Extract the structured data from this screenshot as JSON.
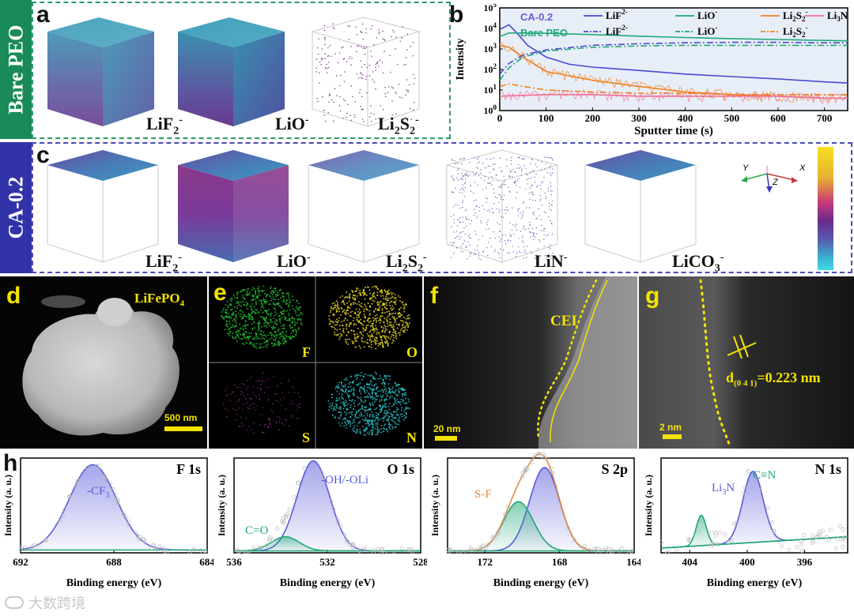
{
  "side_labels": {
    "bare": "Bare PEO",
    "ca": "CA-0.2"
  },
  "colors": {
    "bare_bar": "#1a8a5a",
    "ca_bar": "#3232a8",
    "bare_dash": "#2a9a6a",
    "ca_dash": "#4a4ab8",
    "yellow": "#f3e400"
  },
  "panel_a": {
    "letter": "a",
    "labels": [
      "LiF",
      "LiO",
      "Li",
      "S"
    ],
    "label_texts": [
      {
        "base": "LiF",
        "sub": "2",
        "sup": "-"
      },
      {
        "base": "LiO",
        "sub": "",
        "sup": "-"
      },
      {
        "base": "Li",
        "sub": "2",
        "mid": "S",
        "sub2": "2",
        "sup": "-"
      }
    ]
  },
  "panel_c": {
    "letter": "c",
    "label_texts": [
      {
        "base": "LiF",
        "sub": "2",
        "sup": "-"
      },
      {
        "base": "LiO",
        "sub": "",
        "sup": "-"
      },
      {
        "base": "Li",
        "sub": "2",
        "mid": "S",
        "sub2": "2",
        "sup": "-"
      },
      {
        "base": "LiN",
        "sub": "",
        "sup": "-"
      },
      {
        "base": "LiCO",
        "sub": "3",
        "sup": "-"
      }
    ],
    "axes": {
      "y": "Y",
      "z": "Z",
      "x": "X"
    }
  },
  "panel_b": {
    "letter": "b",
    "legend_groups": {
      "ca": "CA-0.2",
      "bare": "Bare PEO"
    },
    "legend_items": [
      {
        "label": "LiF",
        "sup": "2-",
        "color": "#4a4ad0",
        "style": "solid"
      },
      {
        "label": "LiO",
        "sup": "-",
        "color": "#20a878",
        "style": "solid"
      },
      {
        "label": "Li",
        "sub": "2",
        "mid": "S",
        "sub2": "2",
        "sup": "-",
        "color": "#f08020",
        "style": "solid"
      },
      {
        "label": "Li",
        "sub": "3",
        "mid": "N",
        "color": "#f07090",
        "style": "solid"
      },
      {
        "label": "LiF",
        "sup": "2-",
        "color": "#4a4ad0",
        "style": "dashdot"
      },
      {
        "label": "LiO",
        "sup": "-",
        "color": "#20a878",
        "style": "dashdot"
      },
      {
        "label": "Li",
        "sub": "2",
        "mid": "S",
        "sub2": "2",
        "sup": "-",
        "color": "#f08020",
        "style": "dashdot"
      }
    ]
  },
  "chart_data": [
    {
      "type": "line",
      "title": "",
      "xlabel": "Sputter time (s)",
      "ylabel": "Intensity",
      "xlim": [
        0,
        750
      ],
      "ylim": [
        1,
        100000
      ],
      "yscale": "log",
      "xticks": [
        0,
        100,
        200,
        300,
        400,
        500,
        600,
        700
      ],
      "yticks": [
        "10^0",
        "10^1",
        "10^2",
        "10^3",
        "10^4",
        "10^5"
      ],
      "series": [
        {
          "name": "CA-0.2 LiF2-",
          "color": "#4a4ad0",
          "dash": "",
          "x": [
            0,
            20,
            40,
            60,
            100,
            150,
            200,
            300,
            400,
            500,
            600,
            700,
            750
          ],
          "y": [
            9000,
            15000,
            5000,
            1500,
            400,
            180,
            130,
            90,
            60,
            45,
            35,
            25,
            22
          ]
        },
        {
          "name": "CA-0.2 LiO-",
          "color": "#20a878",
          "dash": "",
          "x": [
            0,
            20,
            50,
            100,
            200,
            300,
            400,
            500,
            600,
            700,
            750
          ],
          "y": [
            4000,
            6000,
            6000,
            5800,
            5000,
            4200,
            3600,
            3200,
            2900,
            2600,
            2500
          ]
        },
        {
          "name": "CA-0.2 Li2S2-",
          "color": "#f08020",
          "dash": "",
          "x": [
            0,
            20,
            50,
            100,
            200,
            300,
            400,
            500,
            600,
            700,
            750
          ],
          "y": [
            1500,
            1200,
            400,
            80,
            30,
            15,
            8,
            6,
            5,
            4,
            4
          ]
        },
        {
          "name": "CA-0.2 Li3N",
          "color": "#f07090",
          "dash": "",
          "x": [
            0,
            100,
            200,
            300,
            400,
            500,
            600,
            700,
            750
          ],
          "y": [
            5,
            6,
            6,
            5,
            5,
            5,
            5,
            4,
            4
          ]
        },
        {
          "name": "Bare PEO LiF2-",
          "color": "#4a4ad0",
          "dash": "8,3,2,3",
          "x": [
            0,
            20,
            50,
            100,
            200,
            300,
            400,
            500,
            600,
            700,
            750
          ],
          "y": [
            60,
            200,
            500,
            900,
            1500,
            1800,
            2000,
            2100,
            2100,
            2000,
            2000
          ]
        },
        {
          "name": "Bare PEO LiO-",
          "color": "#20a878",
          "dash": "8,3,2,3",
          "x": [
            0,
            20,
            50,
            100,
            200,
            300,
            400,
            500,
            600,
            700,
            750
          ],
          "y": [
            30,
            120,
            400,
            800,
            1200,
            1400,
            1500,
            1500,
            1500,
            1500,
            1500
          ]
        },
        {
          "name": "Bare PEO Li2S2-",
          "color": "#f08020",
          "dash": "8,3,2,3",
          "x": [
            0,
            20,
            50,
            100,
            200,
            300,
            400,
            500,
            600,
            700,
            750
          ],
          "y": [
            15,
            20,
            15,
            10,
            8,
            7,
            7,
            6,
            6,
            6,
            6
          ]
        }
      ]
    },
    {
      "type": "line",
      "title": "F 1s",
      "xlabel": "Binding energy (eV)",
      "ylabel": "Intensity (a. u.)",
      "xlim": [
        692,
        684
      ],
      "xticks": [
        692,
        688,
        684
      ],
      "annotations": [
        {
          "text": "-CF",
          "sub": "3",
          "color": "#5a5adc"
        }
      ],
      "peaks": [
        {
          "center": 688.9,
          "height": 0.9,
          "width": 1.0,
          "color": "#5a5adc"
        }
      ],
      "baseline": 0.03
    },
    {
      "type": "line",
      "title": "O 1s",
      "xlabel": "Binding energy (eV)",
      "ylabel": "Intensity (a. u.)",
      "xlim": [
        536,
        528
      ],
      "xticks": [
        536,
        532,
        528
      ],
      "annotations": [
        {
          "text": "-OH/-OLi",
          "color": "#5a5adc"
        },
        {
          "text": "C=O",
          "color": "#20a878"
        }
      ],
      "peaks": [
        {
          "center": 532.6,
          "height": 0.95,
          "width": 0.7,
          "color": "#5a5adc"
        },
        {
          "center": 533.8,
          "height": 0.15,
          "width": 0.6,
          "color": "#20a878"
        }
      ],
      "baseline": 0.02
    },
    {
      "type": "line",
      "title": "S 2p",
      "xlabel": "Binding energy (eV)",
      "ylabel": "Intensity (a. u.)",
      "xlim": [
        174,
        164
      ],
      "xticks": [
        172,
        168,
        164
      ],
      "annotations": [
        {
          "text": "S-F",
          "color": "#e08a40"
        }
      ],
      "peaks": [
        {
          "center": 168.8,
          "height": 0.88,
          "width": 0.8,
          "color": "#5a5adc"
        },
        {
          "center": 170.2,
          "height": 0.52,
          "width": 0.8,
          "color": "#20a878"
        }
      ],
      "envelope_color": "#e08a40",
      "baseline": 0.02
    },
    {
      "type": "line",
      "title": "N 1s",
      "xlabel": "Binding energy (eV)",
      "ylabel": "Intensity (a. u.)",
      "xlim": [
        406,
        393
      ],
      "xticks": [
        404,
        400,
        396
      ],
      "annotations": [
        {
          "text": "Li",
          "sub": "3",
          "mid": "N",
          "color": "#5a5adc"
        },
        {
          "text": "C≡N",
          "color": "#20a878"
        }
      ],
      "peaks": [
        {
          "center": 399.6,
          "height": 0.75,
          "width": 0.7,
          "color": "#5a5adc"
        },
        {
          "center": 403.2,
          "height": 0.32,
          "width": 0.35,
          "color": "#20a878"
        }
      ],
      "baseline_line": [
        0.05,
        0.17
      ],
      "baseline": 0.05
    }
  ],
  "panel_d": {
    "letter": "d",
    "label": "LiFePO",
    "label_sub": "4",
    "scale": "500 nm"
  },
  "panel_e": {
    "letter": "e",
    "elements": [
      "F",
      "O",
      "S",
      "N"
    ]
  },
  "panel_f": {
    "letter": "f",
    "label": "CEI",
    "scale": "20 nm"
  },
  "panel_g": {
    "letter": "g",
    "label": "d",
    "label_sub": "(0 4 1)",
    "label_tail": "=0.223 nm",
    "scale": "2 nm"
  },
  "panel_h": {
    "letter": "h"
  },
  "watermark": "大数跨境"
}
